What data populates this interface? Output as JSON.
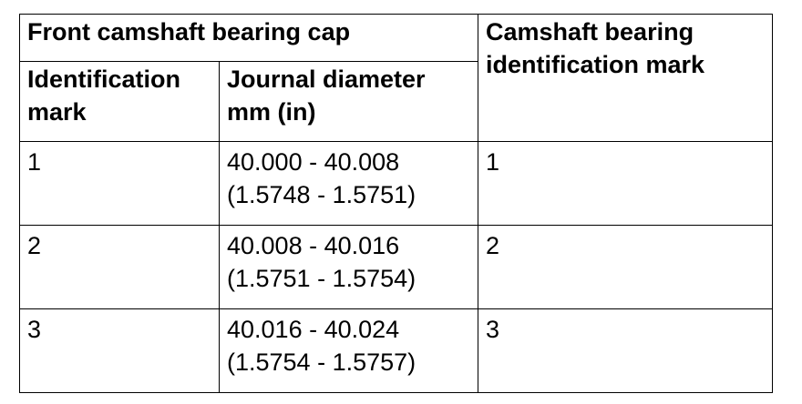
{
  "table": {
    "group_header": "Front camshaft bearing cap",
    "right_header": [
      "Camshaft bearing",
      "identification mark"
    ],
    "sub_headers": {
      "identification_mark": [
        "Identification",
        "mark"
      ],
      "journal_diameter": [
        "Journal diameter",
        "mm (in)"
      ]
    },
    "rows": [
      {
        "id_mark": "1",
        "diameter_mm": "40.000 - 40.008",
        "diameter_in": "(1.5748 - 1.5751)",
        "bearing_mark": "1"
      },
      {
        "id_mark": "2",
        "diameter_mm": "40.008 - 40.016",
        "diameter_in": "(1.5751 - 1.5754)",
        "bearing_mark": "2"
      },
      {
        "id_mark": "3",
        "diameter_mm": "40.016 - 40.024",
        "diameter_in": "(1.5754 - 1.5757)",
        "bearing_mark": "3"
      }
    ]
  }
}
